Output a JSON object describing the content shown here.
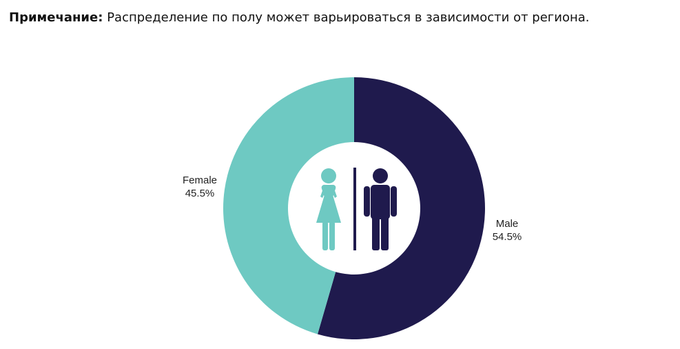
{
  "note": {
    "label": "Примечание:",
    "text": "Распределение по полу может варьироваться в зависимости от региона."
  },
  "chart_data": {
    "type": "pie",
    "donut": true,
    "start": "12 o'clock, clockwise",
    "categories": [
      "Male",
      "Female"
    ],
    "values": [
      54.5,
      45.5
    ],
    "value_labels": [
      "54.5%",
      "45.5%"
    ],
    "colors": [
      "#1f1a4d",
      "#6ec9c2"
    ],
    "center_icon": "female-male-restroom-icon"
  }
}
